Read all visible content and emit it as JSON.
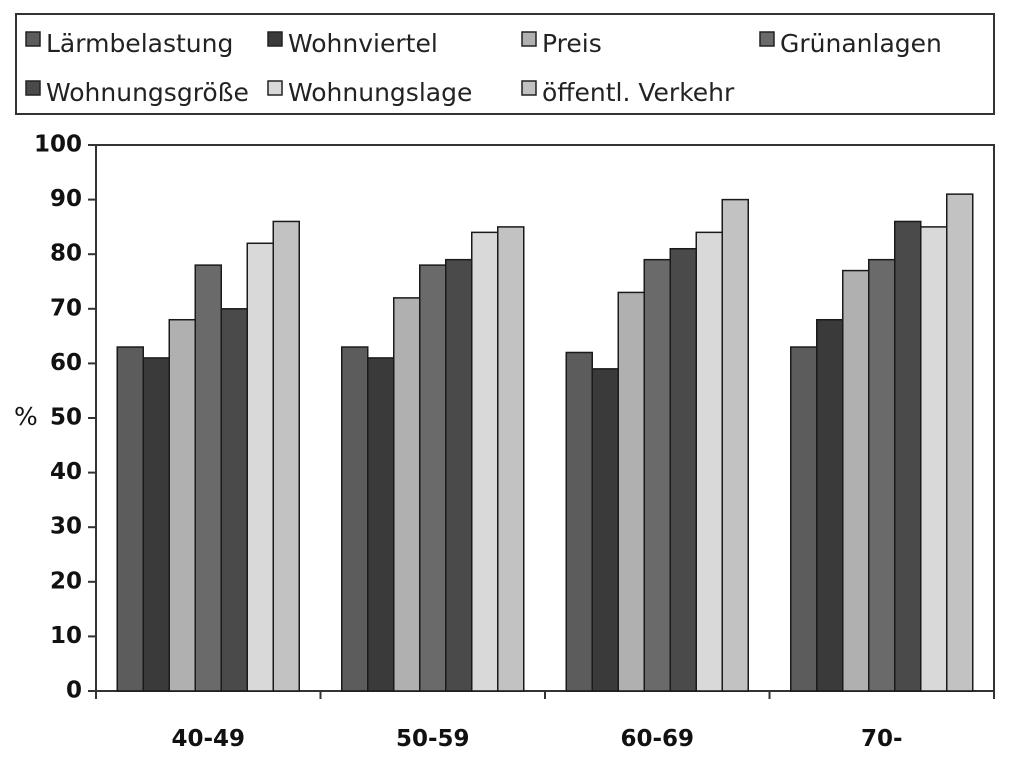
{
  "chart_data": {
    "type": "bar",
    "title": "",
    "xlabel": "",
    "ylabel": "%",
    "ylim": [
      0,
      100
    ],
    "yticks": [
      "0",
      "10",
      "20",
      "30",
      "40",
      "50",
      "60",
      "70",
      "80",
      "90",
      "100"
    ],
    "grid": false,
    "legend_position": "top",
    "categories": [
      "40-49",
      "50-59",
      "60-69",
      "70-"
    ],
    "series": [
      {
        "name": "Lärmbelastung",
        "color": "#5c5c5c",
        "values": [
          63,
          63,
          62,
          63
        ]
      },
      {
        "name": "Wohnviertel",
        "color": "#3a3a3a",
        "values": [
          61,
          61,
          59,
          68
        ]
      },
      {
        "name": "Preis",
        "color": "#b0b0b0",
        "values": [
          68,
          72,
          73,
          77
        ]
      },
      {
        "name": "Grünanlagen",
        "color": "#6a6a6a",
        "values": [
          78,
          78,
          79,
          79
        ]
      },
      {
        "name": "Wohnungsgröße",
        "color": "#4a4a4a",
        "values": [
          70,
          79,
          81,
          86
        ]
      },
      {
        "name": "Wohnungslage",
        "color": "#d9d9d9",
        "values": [
          82,
          84,
          84,
          85
        ]
      },
      {
        "name": "öffentl. Verkehr",
        "color": "#c2c2c2",
        "values": [
          86,
          85,
          90,
          91
        ]
      }
    ]
  }
}
